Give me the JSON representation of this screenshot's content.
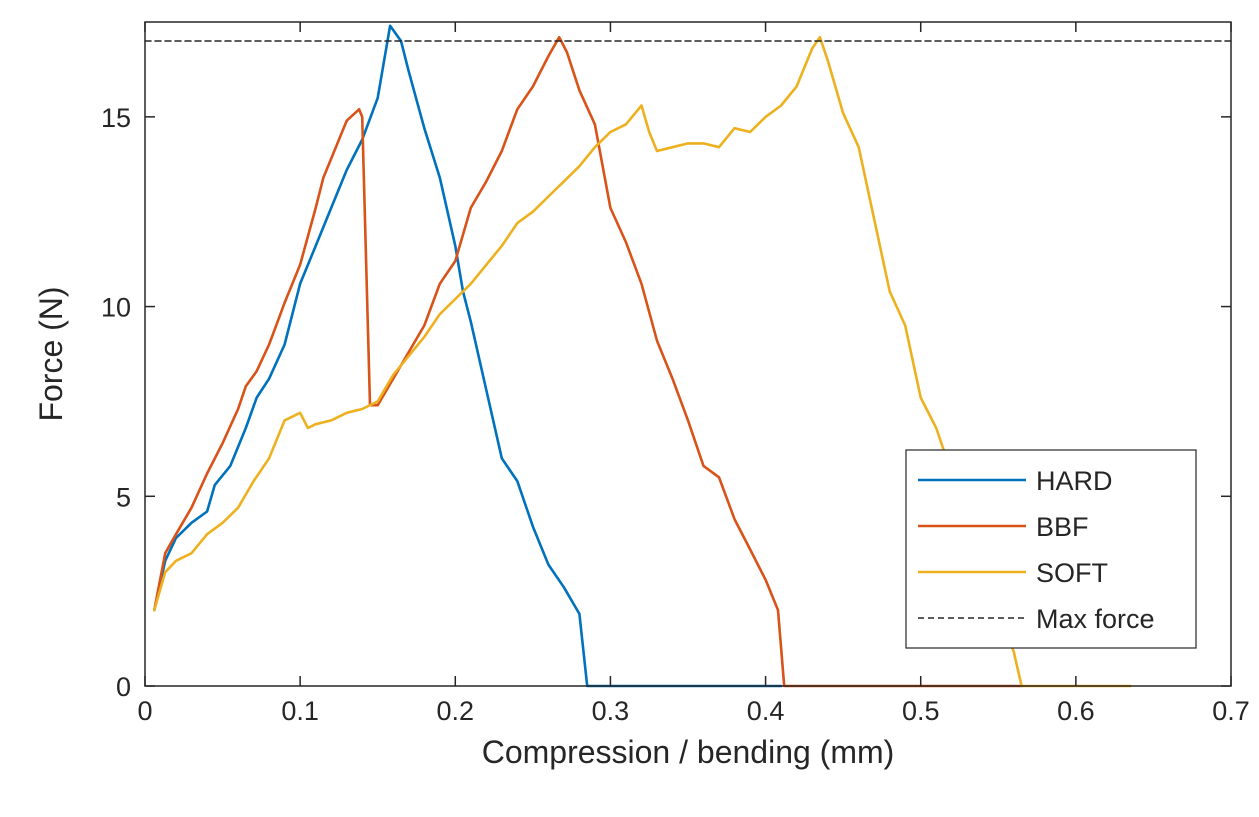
{
  "chart_data": {
    "type": "line",
    "title": "",
    "xlabel": "Compression / bending (mm)",
    "ylabel": "Force (N)",
    "xlim": [
      0,
      0.7
    ],
    "ylim": [
      0,
      17.5
    ],
    "x_ticks": [
      0,
      0.1,
      0.2,
      0.3,
      0.4,
      0.5,
      0.6,
      0.7
    ],
    "x_tick_labels": [
      "0",
      "0.1",
      "0.2",
      "0.3",
      "0.4",
      "0.5",
      "0.6",
      "0.7"
    ],
    "y_ticks": [
      0,
      5,
      10,
      15
    ],
    "y_tick_labels": [
      "0",
      "5",
      "10",
      "15"
    ],
    "grid": false,
    "legend_position": "bottom-right",
    "series": [
      {
        "name": "HARD",
        "color": "#0072BD",
        "style": "solid",
        "x": [
          0.006,
          0.013,
          0.02,
          0.03,
          0.04,
          0.045,
          0.055,
          0.065,
          0.072,
          0.08,
          0.09,
          0.1,
          0.11,
          0.12,
          0.13,
          0.14,
          0.15,
          0.158,
          0.165,
          0.17,
          0.18,
          0.19,
          0.2,
          0.205,
          0.21,
          0.22,
          0.23,
          0.24,
          0.25,
          0.26,
          0.27,
          0.28,
          0.285,
          0.3,
          0.35,
          0.41
        ],
        "y": [
          2.0,
          3.3,
          3.9,
          4.3,
          4.6,
          5.3,
          5.8,
          6.8,
          7.6,
          8.1,
          9.0,
          10.6,
          11.6,
          12.6,
          13.6,
          14.4,
          15.5,
          17.4,
          17.0,
          16.2,
          14.7,
          13.4,
          11.6,
          10.4,
          9.6,
          7.8,
          6.0,
          5.4,
          4.2,
          3.2,
          2.6,
          1.9,
          0.0,
          0.0,
          0.0,
          0.0
        ]
      },
      {
        "name": "BBF",
        "color": "#D95319",
        "style": "solid",
        "x": [
          0.006,
          0.013,
          0.02,
          0.03,
          0.04,
          0.05,
          0.06,
          0.065,
          0.072,
          0.08,
          0.09,
          0.1,
          0.11,
          0.115,
          0.12,
          0.13,
          0.138,
          0.14,
          0.145,
          0.15,
          0.16,
          0.17,
          0.18,
          0.19,
          0.2,
          0.21,
          0.22,
          0.23,
          0.24,
          0.25,
          0.26,
          0.267,
          0.272,
          0.28,
          0.29,
          0.3,
          0.31,
          0.32,
          0.33,
          0.34,
          0.35,
          0.36,
          0.37,
          0.38,
          0.39,
          0.4,
          0.408,
          0.412,
          0.45,
          0.5,
          0.565
        ],
        "y": [
          2.0,
          3.5,
          4.0,
          4.7,
          5.6,
          6.4,
          7.3,
          7.9,
          8.3,
          9.0,
          10.1,
          11.1,
          12.6,
          13.4,
          13.9,
          14.9,
          15.2,
          15.0,
          7.4,
          7.4,
          8.1,
          8.8,
          9.5,
          10.6,
          11.2,
          12.6,
          13.3,
          14.1,
          15.2,
          15.8,
          16.6,
          17.1,
          16.7,
          15.7,
          14.8,
          12.6,
          11.7,
          10.6,
          9.1,
          8.1,
          7.0,
          5.8,
          5.5,
          4.4,
          3.6,
          2.8,
          2.0,
          0.0,
          0.0,
          0.0,
          0.0
        ]
      },
      {
        "name": "SOFT",
        "color": "#EDB120",
        "style": "solid",
        "x": [
          0.006,
          0.013,
          0.02,
          0.03,
          0.04,
          0.05,
          0.06,
          0.07,
          0.08,
          0.09,
          0.1,
          0.105,
          0.11,
          0.12,
          0.13,
          0.14,
          0.15,
          0.16,
          0.17,
          0.18,
          0.19,
          0.2,
          0.21,
          0.22,
          0.23,
          0.24,
          0.25,
          0.26,
          0.27,
          0.28,
          0.29,
          0.3,
          0.31,
          0.32,
          0.325,
          0.33,
          0.34,
          0.35,
          0.36,
          0.37,
          0.38,
          0.39,
          0.4,
          0.41,
          0.42,
          0.43,
          0.435,
          0.44,
          0.45,
          0.46,
          0.47,
          0.48,
          0.49,
          0.5,
          0.51,
          0.52,
          0.53,
          0.54,
          0.55,
          0.56,
          0.565,
          0.6,
          0.635
        ],
        "y": [
          2.0,
          3.0,
          3.3,
          3.5,
          4.0,
          4.3,
          4.7,
          5.4,
          6.0,
          7.0,
          7.2,
          6.8,
          6.9,
          7.0,
          7.2,
          7.3,
          7.5,
          8.2,
          8.7,
          9.2,
          9.8,
          10.2,
          10.6,
          11.1,
          11.6,
          12.2,
          12.5,
          12.9,
          13.3,
          13.7,
          14.2,
          14.6,
          14.8,
          15.3,
          14.6,
          14.1,
          14.2,
          14.3,
          14.3,
          14.2,
          14.7,
          14.6,
          15.0,
          15.3,
          15.8,
          16.8,
          17.1,
          16.5,
          15.1,
          14.2,
          12.3,
          10.4,
          9.5,
          7.6,
          6.8,
          5.6,
          4.4,
          3.1,
          2.0,
          0.9,
          0.0,
          0.0,
          0.0
        ]
      },
      {
        "name": "Max force",
        "color": "#262626",
        "style": "dashed",
        "x": [
          0,
          0.7
        ],
        "y": [
          17.0,
          17.0
        ]
      }
    ]
  }
}
